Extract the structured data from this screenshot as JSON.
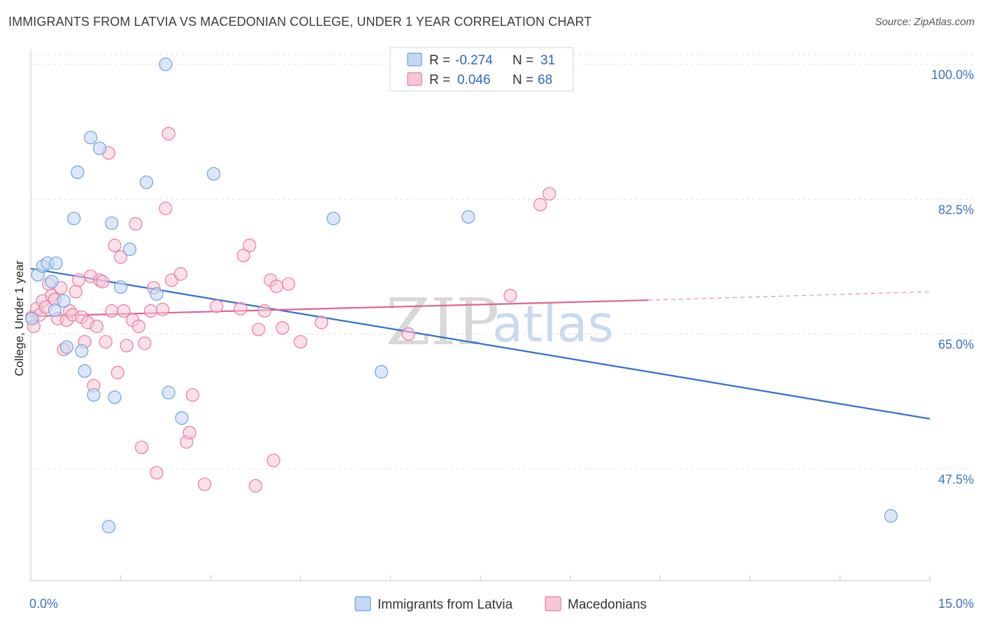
{
  "title": "IMMIGRANTS FROM LATVIA VS MACEDONIAN COLLEGE, UNDER 1 YEAR CORRELATION CHART",
  "source": "Source: ZipAtlas.com",
  "watermark": {
    "zip": "ZIP",
    "atlas": "atlas"
  },
  "colors": {
    "blue": "#6fa0de",
    "blue_fill": "#c4d8f3",
    "blue_line": "#2f6fd0",
    "pink": "#e97aa0",
    "pink_fill": "#f8c6d6",
    "pink_line": "#e0628d"
  },
  "legend": {
    "rows": [
      {
        "r_label": "R =",
        "r_value": "-0.274",
        "n_label": "N =",
        "n_value": "31"
      },
      {
        "r_label": "R =",
        "r_value": "0.046",
        "n_label": "N =",
        "n_value": "68"
      }
    ]
  },
  "chart_data": {
    "type": "scatter",
    "title": "IMMIGRANTS FROM LATVIA VS MACEDONIAN COLLEGE, UNDER 1 YEAR CORRELATION CHART",
    "xlabel": "",
    "ylabel": "College, Under 1 year",
    "xlim": [
      0,
      15
    ],
    "ylim": [
      33,
      102
    ],
    "x_tick_labels": [
      "0.0%",
      "15.0%"
    ],
    "y_ticks": [
      100,
      82.5,
      65,
      47.5
    ],
    "y_tick_labels": [
      "100.0%",
      "82.5%",
      "65.0%",
      "47.5%"
    ],
    "grid": "horizontal dashed",
    "legend_position": "top-center",
    "series": [
      {
        "name": "Immigrants from Latvia",
        "color": "blue",
        "r": -0.274,
        "n": 31,
        "trend": {
          "x": [
            0,
            15
          ],
          "y": [
            73.5,
            54.0
          ],
          "dashed_to": 15
        },
        "points": [
          [
            0.02,
            67.0
          ],
          [
            0.12,
            72.7
          ],
          [
            0.2,
            73.8
          ],
          [
            0.28,
            74.2
          ],
          [
            0.35,
            71.8
          ],
          [
            0.4,
            68.1
          ],
          [
            0.42,
            74.2
          ],
          [
            0.55,
            69.3
          ],
          [
            0.6,
            63.3
          ],
          [
            0.72,
            80.0
          ],
          [
            0.78,
            86.0
          ],
          [
            0.85,
            62.8
          ],
          [
            0.9,
            60.2
          ],
          [
            1.0,
            90.5
          ],
          [
            1.05,
            57.1
          ],
          [
            1.15,
            89.1
          ],
          [
            1.3,
            40.0
          ],
          [
            1.35,
            79.4
          ],
          [
            1.4,
            56.8
          ],
          [
            1.5,
            71.1
          ],
          [
            1.65,
            76.0
          ],
          [
            1.93,
            84.7
          ],
          [
            2.1,
            70.2
          ],
          [
            2.25,
            100.0
          ],
          [
            2.3,
            57.4
          ],
          [
            2.52,
            54.1
          ],
          [
            3.05,
            85.8
          ],
          [
            5.05,
            80.0
          ],
          [
            5.85,
            60.1
          ],
          [
            7.3,
            80.2
          ],
          [
            14.35,
            41.4
          ]
        ]
      },
      {
        "name": "Macedonians",
        "color": "pink",
        "r": 0.046,
        "n": 68,
        "trend": {
          "x": [
            0,
            10.3
          ],
          "y": [
            67.3,
            69.4
          ],
          "dashed_to": 15,
          "dashed_end_y": 70.5
        },
        "points": [
          [
            0.02,
            67.2
          ],
          [
            0.05,
            66.0
          ],
          [
            0.1,
            68.3
          ],
          [
            0.15,
            67.5
          ],
          [
            0.2,
            69.3
          ],
          [
            0.25,
            68.5
          ],
          [
            0.3,
            71.5
          ],
          [
            0.35,
            70.0
          ],
          [
            0.4,
            69.5
          ],
          [
            0.45,
            67.0
          ],
          [
            0.5,
            71.0
          ],
          [
            0.55,
            63.0
          ],
          [
            0.6,
            66.8
          ],
          [
            0.65,
            68.0
          ],
          [
            0.7,
            67.5
          ],
          [
            0.75,
            70.5
          ],
          [
            0.8,
            72.0
          ],
          [
            0.85,
            67.2
          ],
          [
            0.9,
            64.0
          ],
          [
            0.95,
            66.5
          ],
          [
            1.0,
            72.5
          ],
          [
            1.05,
            58.3
          ],
          [
            1.1,
            66.0
          ],
          [
            1.15,
            72.0
          ],
          [
            1.2,
            71.8
          ],
          [
            1.25,
            64.0
          ],
          [
            1.3,
            88.5
          ],
          [
            1.35,
            68.0
          ],
          [
            1.4,
            76.5
          ],
          [
            1.45,
            60.0
          ],
          [
            1.5,
            75.0
          ],
          [
            1.55,
            68.0
          ],
          [
            1.6,
            63.5
          ],
          [
            1.7,
            66.8
          ],
          [
            1.75,
            79.3
          ],
          [
            1.8,
            66.0
          ],
          [
            1.85,
            50.3
          ],
          [
            1.9,
            63.8
          ],
          [
            2.0,
            68.0
          ],
          [
            2.05,
            71.0
          ],
          [
            2.1,
            47.0
          ],
          [
            2.2,
            68.2
          ],
          [
            2.25,
            81.3
          ],
          [
            2.3,
            91.0
          ],
          [
            2.35,
            72.0
          ],
          [
            2.5,
            72.8
          ],
          [
            2.6,
            51.0
          ],
          [
            2.65,
            52.2
          ],
          [
            2.7,
            57.1
          ],
          [
            2.9,
            45.5
          ],
          [
            3.1,
            68.6
          ],
          [
            3.5,
            68.3
          ],
          [
            3.55,
            75.2
          ],
          [
            3.65,
            76.5
          ],
          [
            3.75,
            45.3
          ],
          [
            3.8,
            65.6
          ],
          [
            3.9,
            68.0
          ],
          [
            4.0,
            72.0
          ],
          [
            4.05,
            48.6
          ],
          [
            4.2,
            65.8
          ],
          [
            4.3,
            71.5
          ],
          [
            4.5,
            64.0
          ],
          [
            4.85,
            66.5
          ],
          [
            6.3,
            65.0
          ],
          [
            8.0,
            70.0
          ],
          [
            8.5,
            81.8
          ],
          [
            8.65,
            83.2
          ],
          [
            4.1,
            71.2
          ]
        ]
      }
    ]
  }
}
